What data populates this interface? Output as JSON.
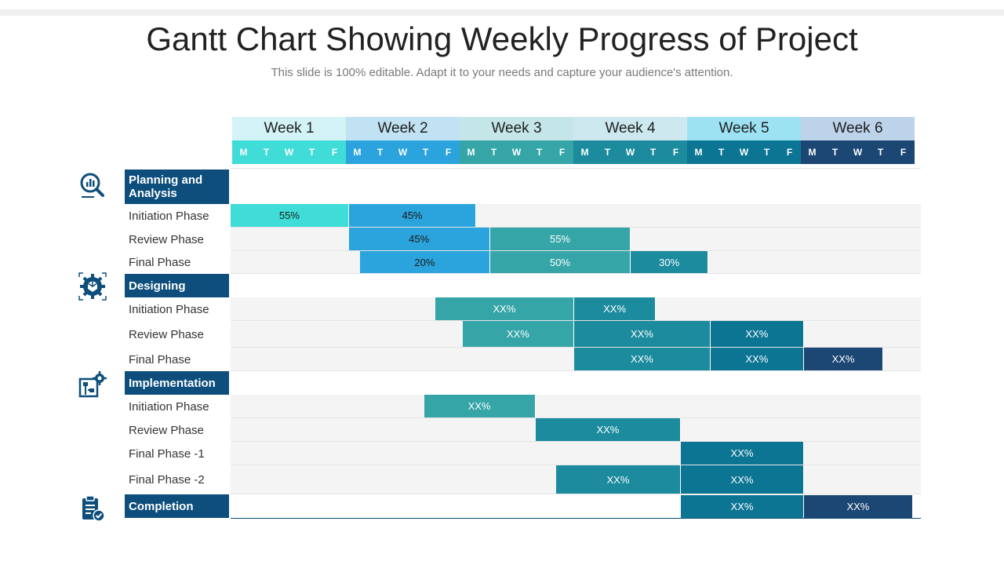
{
  "title": "Gantt Chart Showing Weekly Progress of Project",
  "subtitle": "This slide is 100% editable. Adapt it to your needs and capture your audience's attention.",
  "weeks": [
    {
      "label": "Week 1",
      "color": "#d3f3f6"
    },
    {
      "label": "Week 2",
      "color": "#c1e2f2"
    },
    {
      "label": "Week 3",
      "color": "#c5e6e8"
    },
    {
      "label": "Week 4",
      "color": "#cde8ee"
    },
    {
      "label": "Week 5",
      "color": "#9de2f3"
    },
    {
      "label": "Week 6",
      "color": "#bcd3ea"
    }
  ],
  "days": [
    "M",
    "T",
    "W",
    "T",
    "F"
  ],
  "day_colors": [
    "#40dcd8",
    "#2ba3dc",
    "#35a5a8",
    "#1c8b9e",
    "#0c7594",
    "#1c4674"
  ],
  "sections": [
    {
      "name": "Planning and Analysis",
      "icon": "analysis-magnifier-icon",
      "phases": [
        "Initiation Phase",
        "Review Phase",
        "Final Phase"
      ]
    },
    {
      "name": "Designing",
      "icon": "gear-cube-icon",
      "phases": [
        "Initiation Phase",
        "Review Phase",
        "Final Phase"
      ]
    },
    {
      "name": "Implementation",
      "icon": "circuit-gear-icon",
      "phases": [
        "Initiation Phase",
        "Review Phase",
        "Final Phase -1",
        "Final Phase -2"
      ]
    },
    {
      "name": "Completion",
      "icon": "clipboard-check-icon",
      "phases": []
    }
  ],
  "chart_data": {
    "type": "gantt",
    "title": "Gantt Chart Showing Weekly Progress of Project",
    "x_axis": "working days (Week 1 M = day 0 … Week 6 F = day 30)",
    "tasks": [
      {
        "section": "Planning and Analysis",
        "phase": "Initiation Phase",
        "segments": [
          {
            "start": 0,
            "end": 5.2,
            "label": "55%",
            "color": "#40dcd8",
            "text_color": "#1a1a1a"
          },
          {
            "start": 5.2,
            "end": 10.8,
            "label": "45%",
            "color": "#2ba3dc",
            "text_color": "#1a1a1a"
          }
        ]
      },
      {
        "section": "Planning and Analysis",
        "phase": "Review Phase",
        "segments": [
          {
            "start": 5.2,
            "end": 11.4,
            "label": "45%",
            "color": "#2ba3dc",
            "text_color": "#1a1a1a"
          },
          {
            "start": 11.4,
            "end": 17.6,
            "label": "55%",
            "color": "#35a5a8",
            "text_color": "#ffffff"
          }
        ]
      },
      {
        "section": "Planning and Analysis",
        "phase": "Final Phase",
        "segments": [
          {
            "start": 5.7,
            "end": 11.4,
            "label": "20%",
            "color": "#2ba3dc",
            "text_color": "#1a1a1a"
          },
          {
            "start": 11.4,
            "end": 17.6,
            "label": "50%",
            "color": "#35a5a8",
            "text_color": "#ffffff"
          },
          {
            "start": 17.6,
            "end": 21,
            "label": "30%",
            "color": "#1c8b9e",
            "text_color": "#ffffff"
          }
        ]
      },
      {
        "section": "Designing",
        "phase": "Initiation Phase",
        "segments": [
          {
            "start": 9,
            "end": 15.1,
            "label": "XX%",
            "color": "#35a5a8",
            "text_color": "#ffffff"
          },
          {
            "start": 15.1,
            "end": 18.7,
            "label": "XX%",
            "color": "#1c8b9e",
            "text_color": "#ffffff"
          }
        ]
      },
      {
        "section": "Designing",
        "phase": "Review Phase",
        "segments": [
          {
            "start": 10.2,
            "end": 15.1,
            "label": "XX%",
            "color": "#35a5a8",
            "text_color": "#ffffff"
          },
          {
            "start": 15.1,
            "end": 21.1,
            "label": "XX%",
            "color": "#1c8b9e",
            "text_color": "#ffffff"
          },
          {
            "start": 21.1,
            "end": 25.2,
            "label": "XX%",
            "color": "#0c7594",
            "text_color": "#ffffff"
          }
        ]
      },
      {
        "section": "Designing",
        "phase": "Final Phase",
        "segments": [
          {
            "start": 15.1,
            "end": 21.1,
            "label": "XX%",
            "color": "#1c8b9e",
            "text_color": "#ffffff"
          },
          {
            "start": 21.1,
            "end": 25.2,
            "label": "XX%",
            "color": "#0c7594",
            "text_color": "#ffffff"
          },
          {
            "start": 25.2,
            "end": 28.7,
            "label": "XX%",
            "color": "#1c4674",
            "text_color": "#ffffff"
          }
        ]
      },
      {
        "section": "Implementation",
        "phase": "Initiation Phase",
        "segments": [
          {
            "start": 8.5,
            "end": 13.4,
            "label": "XX%",
            "color": "#35a5a8",
            "text_color": "#ffffff"
          }
        ]
      },
      {
        "section": "Implementation",
        "phase": "Review Phase",
        "segments": [
          {
            "start": 13.4,
            "end": 19.8,
            "label": "XX%",
            "color": "#1c8b9e",
            "text_color": "#ffffff"
          }
        ]
      },
      {
        "section": "Implementation",
        "phase": "Final Phase -1",
        "segments": [
          {
            "start": 19.8,
            "end": 25.2,
            "label": "XX%",
            "color": "#0c7594",
            "text_color": "#ffffff"
          }
        ]
      },
      {
        "section": "Implementation",
        "phase": "Final Phase -2",
        "segments": [
          {
            "start": 14.3,
            "end": 19.8,
            "label": "XX%",
            "color": "#1c8b9e",
            "text_color": "#ffffff"
          },
          {
            "start": 19.8,
            "end": 25.2,
            "label": "XX%",
            "color": "#0c7594",
            "text_color": "#ffffff"
          }
        ]
      },
      {
        "section": "Completion",
        "phase": "",
        "segments": [
          {
            "start": 19.8,
            "end": 25.2,
            "label": "XX%",
            "color": "#0c7594",
            "text_color": "#ffffff"
          },
          {
            "start": 25.2,
            "end": 30,
            "label": "XX%",
            "color": "#1c4674",
            "text_color": "#ffffff"
          }
        ]
      }
    ]
  }
}
